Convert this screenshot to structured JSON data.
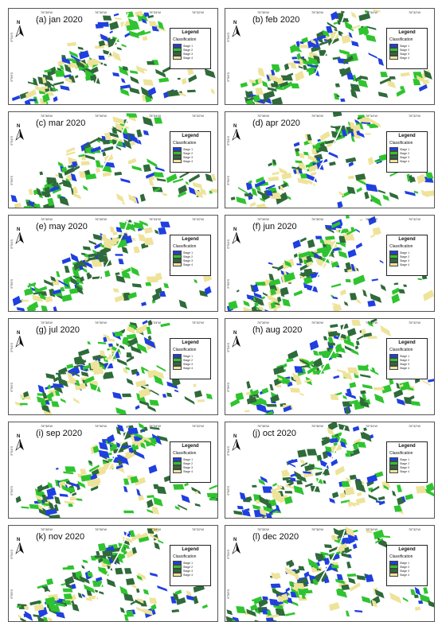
{
  "colors": {
    "stage1": "#1f3fe0",
    "stage2": "#2fc42f",
    "stage3": "#2f6a3a",
    "stage4": "#eee39a"
  },
  "legend": {
    "title": "Legend",
    "subtitle": "Classification",
    "items": [
      "Stage 1",
      "Stage 2",
      "Stage 3",
      "Stage 4"
    ]
  },
  "axis": {
    "lon_ticks": [
      "78°38'W",
      "78°36'W",
      "78°34'W",
      "78°32'W"
    ],
    "lat_ticks": [
      "5°54'S",
      "5°56'S"
    ]
  },
  "north_label": "N",
  "panels": [
    {
      "title": "(a) jan 2020",
      "seed": 11
    },
    {
      "title": "(b) feb 2020",
      "seed": 23
    },
    {
      "title": "(c) mar 2020",
      "seed": 37
    },
    {
      "title": "(d) apr 2020",
      "seed": 41
    },
    {
      "title": "(e) may 2020",
      "seed": 53
    },
    {
      "title": "(f) jun 2020",
      "seed": 67
    },
    {
      "title": "(g) jul 2020",
      "seed": 71
    },
    {
      "title": "(h) aug 2020",
      "seed": 83
    },
    {
      "title": "(i) sep 2020",
      "seed": 97
    },
    {
      "title": "(j) oct 2020",
      "seed": 101
    },
    {
      "title": "(k) nov 2020",
      "seed": 113
    },
    {
      "title": "(l) dec 2020",
      "seed": 127
    }
  ]
}
